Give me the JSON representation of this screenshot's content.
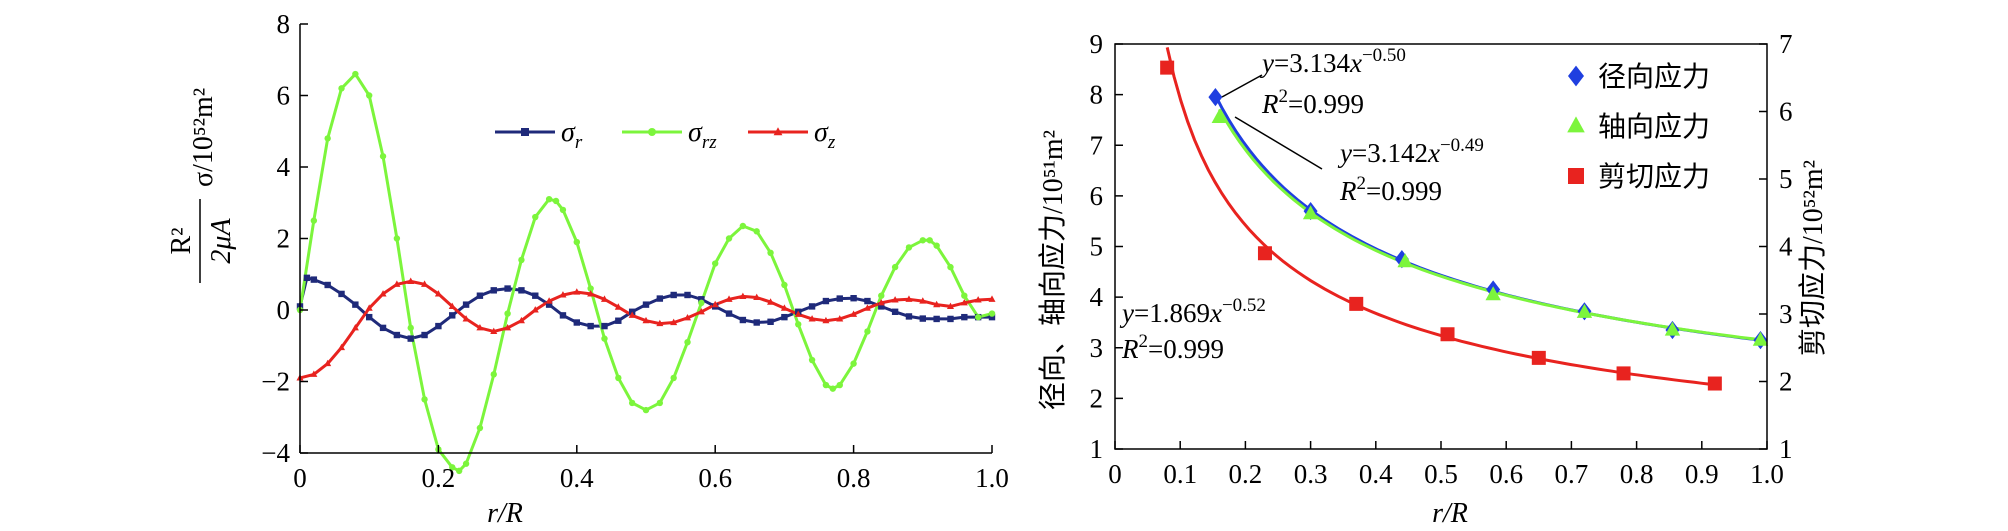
{
  "chart_data": [
    {
      "type": "line",
      "xlabel": "r/R",
      "ylabel": {
        "frac_num": "R²",
        "frac_den": "2μA",
        "main": "σ/10⁵²m²"
      },
      "xlim": [
        0,
        1.0
      ],
      "ylim": [
        -4,
        8
      ],
      "xticks": [
        "0",
        "0.2",
        "0.4",
        "0.6",
        "0.8",
        "1.0"
      ],
      "xtick_values": [
        0,
        0.2,
        0.4,
        0.6,
        0.8,
        1.0
      ],
      "yticks": [
        "−4",
        "−2",
        "0",
        "2",
        "4",
        "6",
        "8"
      ],
      "ytick_values": [
        -4,
        -2,
        0,
        2,
        4,
        6,
        8
      ],
      "legend_position": "top-center",
      "series": [
        {
          "name": "σr",
          "name_base": "σ",
          "name_sub": "r",
          "color": "#1f2a7a",
          "marker": "square",
          "x": [
            0,
            0.01,
            0.02,
            0.04,
            0.06,
            0.08,
            0.1,
            0.12,
            0.14,
            0.16,
            0.18,
            0.2,
            0.22,
            0.24,
            0.26,
            0.28,
            0.3,
            0.32,
            0.34,
            0.36,
            0.38,
            0.4,
            0.42,
            0.44,
            0.46,
            0.48,
            0.5,
            0.52,
            0.54,
            0.56,
            0.58,
            0.6,
            0.62,
            0.64,
            0.66,
            0.68,
            0.7,
            0.72,
            0.74,
            0.76,
            0.78,
            0.8,
            0.82,
            0.84,
            0.86,
            0.88,
            0.9,
            0.92,
            0.94,
            0.96,
            0.98,
            1.0
          ],
          "y": [
            0.1,
            0.9,
            0.85,
            0.7,
            0.45,
            0.15,
            -0.2,
            -0.5,
            -0.7,
            -0.8,
            -0.7,
            -0.45,
            -0.15,
            0.15,
            0.4,
            0.55,
            0.6,
            0.55,
            0.4,
            0.15,
            -0.15,
            -0.35,
            -0.45,
            -0.45,
            -0.3,
            -0.05,
            0.15,
            0.32,
            0.42,
            0.42,
            0.3,
            0.1,
            -0.1,
            -0.28,
            -0.35,
            -0.33,
            -0.2,
            -0.05,
            0.1,
            0.25,
            0.32,
            0.33,
            0.25,
            0.1,
            -0.05,
            -0.18,
            -0.24,
            -0.25,
            -0.25,
            -0.2,
            -0.2,
            -0.2
          ]
        },
        {
          "name": "σrz",
          "name_base": "σ",
          "name_sub": "rz",
          "color": "#7cf53c",
          "marker": "circle",
          "x": [
            0,
            0.02,
            0.04,
            0.06,
            0.08,
            0.1,
            0.12,
            0.14,
            0.16,
            0.18,
            0.2,
            0.22,
            0.23,
            0.24,
            0.26,
            0.28,
            0.3,
            0.32,
            0.34,
            0.36,
            0.37,
            0.38,
            0.4,
            0.42,
            0.44,
            0.46,
            0.48,
            0.5,
            0.52,
            0.54,
            0.56,
            0.58,
            0.6,
            0.62,
            0.64,
            0.66,
            0.68,
            0.7,
            0.72,
            0.74,
            0.76,
            0.77,
            0.78,
            0.8,
            0.82,
            0.84,
            0.86,
            0.88,
            0.9,
            0.91,
            0.92,
            0.94,
            0.96,
            0.98,
            1.0
          ],
          "y": [
            0,
            2.5,
            4.8,
            6.2,
            6.6,
            6.0,
            4.3,
            2.0,
            -0.5,
            -2.5,
            -3.9,
            -4.4,
            -4.5,
            -4.3,
            -3.3,
            -1.8,
            -0.1,
            1.4,
            2.6,
            3.1,
            3.05,
            2.8,
            1.9,
            0.6,
            -0.8,
            -1.9,
            -2.6,
            -2.8,
            -2.6,
            -1.9,
            -0.9,
            0.2,
            1.3,
            2.0,
            2.35,
            2.2,
            1.6,
            0.7,
            -0.4,
            -1.4,
            -2.1,
            -2.2,
            -2.1,
            -1.5,
            -0.6,
            0.4,
            1.2,
            1.75,
            1.95,
            1.95,
            1.8,
            1.2,
            0.4,
            -0.2,
            -0.1
          ]
        },
        {
          "name": "σz",
          "name_base": "σ",
          "name_sub": "z",
          "color": "#e8231f",
          "marker": "triangle",
          "x": [
            0,
            0.02,
            0.04,
            0.06,
            0.08,
            0.1,
            0.12,
            0.14,
            0.16,
            0.18,
            0.2,
            0.22,
            0.24,
            0.26,
            0.28,
            0.3,
            0.32,
            0.34,
            0.36,
            0.38,
            0.4,
            0.42,
            0.44,
            0.46,
            0.48,
            0.5,
            0.52,
            0.54,
            0.56,
            0.58,
            0.6,
            0.62,
            0.64,
            0.66,
            0.68,
            0.7,
            0.72,
            0.74,
            0.76,
            0.78,
            0.8,
            0.82,
            0.84,
            0.86,
            0.88,
            0.9,
            0.92,
            0.94,
            0.96,
            0.98,
            1.0
          ],
          "y": [
            -1.9,
            -1.8,
            -1.5,
            -1.05,
            -0.5,
            0.05,
            0.45,
            0.72,
            0.8,
            0.72,
            0.45,
            0.1,
            -0.25,
            -0.5,
            -0.6,
            -0.5,
            -0.3,
            0.0,
            0.25,
            0.42,
            0.5,
            0.45,
            0.3,
            0.08,
            -0.15,
            -0.3,
            -0.38,
            -0.35,
            -0.22,
            -0.05,
            0.15,
            0.3,
            0.38,
            0.35,
            0.22,
            0.05,
            -0.12,
            -0.25,
            -0.3,
            -0.25,
            -0.12,
            0.05,
            0.2,
            0.28,
            0.3,
            0.25,
            0.15,
            0.1,
            0.2,
            0.28,
            0.3
          ]
        }
      ]
    },
    {
      "type": "scatter",
      "xlabel": "r/R",
      "ylabel_left": "径向、轴向应力/10⁵¹m²",
      "ylabel_right": "剪切应力/10⁵²m²",
      "xlim": [
        0,
        1.0
      ],
      "ylim_left": [
        1,
        9
      ],
      "ylim_right": [
        1,
        7
      ],
      "xticks": [
        "0",
        "0.1",
        "0.2",
        "0.3",
        "0.4",
        "0.5",
        "0.6",
        "0.7",
        "0.8",
        "0.9",
        "1.0"
      ],
      "xtick_values": [
        0,
        0.1,
        0.2,
        0.3,
        0.4,
        0.5,
        0.6,
        0.7,
        0.8,
        0.9,
        1.0
      ],
      "yticks_left": [
        "1",
        "2",
        "3",
        "4",
        "5",
        "6",
        "7",
        "8",
        "9"
      ],
      "ytick_values_left": [
        1,
        2,
        3,
        4,
        5,
        6,
        7,
        8,
        9
      ],
      "yticks_right": [
        "1",
        "2",
        "3",
        "4",
        "5",
        "6",
        "7"
      ],
      "ytick_values_right": [
        1,
        2,
        3,
        4,
        5,
        6,
        7
      ],
      "legend_position": "top-right",
      "series": [
        {
          "name": "径向应力",
          "color": "#1f3fe0",
          "marker": "diamond",
          "axis": "left",
          "x": [
            0.154,
            0.3,
            0.44,
            0.58,
            0.72,
            0.855,
            0.99
          ],
          "y": [
            7.95,
            5.7,
            4.75,
            4.15,
            3.72,
            3.35,
            3.15
          ],
          "fit": {
            "a": 3.134,
            "b": -0.5,
            "color": "#1f3fe0"
          }
        },
        {
          "name": "轴向应力",
          "color": "#7cf53c",
          "marker": "triangle",
          "axis": "left",
          "x": [
            0.16,
            0.3,
            0.445,
            0.58,
            0.72,
            0.855,
            0.99
          ],
          "y": [
            7.55,
            5.65,
            4.7,
            4.05,
            3.7,
            3.35,
            3.15
          ],
          "fit": {
            "a": 3.142,
            "b": -0.49,
            "color": "#7cf53c"
          }
        },
        {
          "name": "剪切应力",
          "color": "#e8231f",
          "marker": "square",
          "axis": "right",
          "x": [
            0.08,
            0.23,
            0.37,
            0.51,
            0.65,
            0.78,
            0.92
          ],
          "y": [
            6.65,
            3.9,
            3.15,
            2.7,
            2.35,
            2.12,
            1.97
          ],
          "fit": {
            "a": 1.869,
            "b": -0.52,
            "color": "#e8231f"
          }
        }
      ],
      "annotations": [
        {
          "eq_lhs": "y",
          "eq_coef": "=3.134",
          "eq_var": "x",
          "eq_exp": "−0.50",
          "r2_base": "R",
          "r2_sup": "2",
          "r2_val": "=0.999"
        },
        {
          "eq_lhs": "y",
          "eq_coef": "=3.142",
          "eq_var": "x",
          "eq_exp": "−0.49",
          "r2_base": "R",
          "r2_sup": "2",
          "r2_val": "=0.999"
        },
        {
          "eq_lhs": "y",
          "eq_coef": "=1.869",
          "eq_var": "x",
          "eq_exp": "−0.52",
          "r2_base": "R",
          "r2_sup": "2",
          "r2_val": "=0.999"
        }
      ]
    }
  ]
}
